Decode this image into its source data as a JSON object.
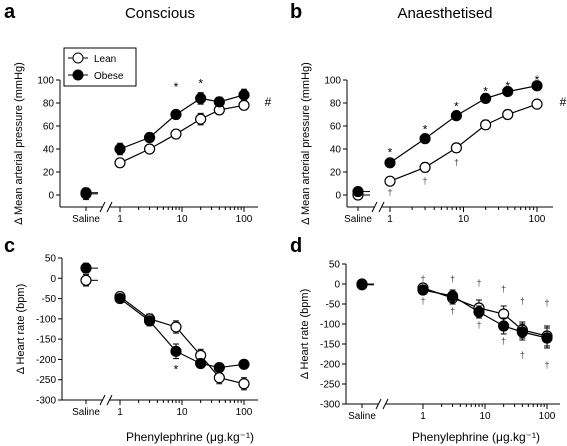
{
  "figure": {
    "xlabel": "Phenylephrine (μg.kg⁻¹)"
  },
  "chart_data": [
    {
      "panel_letter": "a",
      "title": "Conscious",
      "type": "line",
      "ylabel": "Δ Mean arterial pressure (mmHg)",
      "ylim": [
        -5,
        100
      ],
      "yticks": [
        0,
        20,
        40,
        60,
        80,
        100
      ],
      "xscale": "log",
      "xticks": [
        1,
        10,
        100
      ],
      "saline_label": "Saline",
      "legend": {
        "position": "top-left",
        "entries": [
          "Lean",
          "Obese"
        ]
      },
      "grid": false,
      "series": [
        {
          "name": "Lean",
          "marker": "open-circle",
          "saline": {
            "y": 2,
            "err": 4
          },
          "x": [
            1,
            3,
            8,
            20,
            40,
            100
          ],
          "y": [
            28,
            40,
            53,
            66,
            74,
            78
          ],
          "err": [
            3,
            3,
            4,
            5,
            4,
            4
          ]
        },
        {
          "name": "Obese",
          "marker": "filled-circle",
          "saline": {
            "y": 1,
            "err": 5
          },
          "x": [
            1,
            3,
            8,
            20,
            40,
            100
          ],
          "y": [
            40,
            50,
            70,
            84,
            81,
            87
          ],
          "err": [
            5,
            4,
            3,
            5,
            4,
            5
          ]
        }
      ],
      "annotations": [
        {
          "text": "*",
          "x": 8,
          "y": 94
        },
        {
          "text": "*",
          "x": 20,
          "y": 97
        },
        {
          "text": "#",
          "x": 150,
          "y": 81
        }
      ]
    },
    {
      "panel_letter": "b",
      "title": "Anaesthetised",
      "type": "line",
      "ylabel": "Δ Mean arterial pressure (mmHg)",
      "ylim": [
        -5,
        100
      ],
      "yticks": [
        0,
        20,
        40,
        60,
        80,
        100
      ],
      "xscale": "log",
      "xticks": [
        1,
        10,
        100
      ],
      "saline_label": "Saline",
      "grid": false,
      "series": [
        {
          "name": "Lean",
          "marker": "open-circle",
          "saline": {
            "y": 0,
            "err": 2
          },
          "x": [
            1,
            3,
            8,
            20,
            40,
            100
          ],
          "y": [
            12,
            24,
            41,
            61,
            70,
            79
          ],
          "err": [
            3,
            4,
            4,
            4,
            4,
            3
          ]
        },
        {
          "name": "Obese",
          "marker": "filled-circle",
          "saline": {
            "y": 3,
            "err": 2
          },
          "x": [
            1,
            3,
            8,
            20,
            40,
            100
          ],
          "y": [
            28,
            49,
            69,
            84,
            90,
            95
          ],
          "err": [
            3,
            2,
            3,
            2,
            2,
            2
          ]
        }
      ],
      "annotations": [
        {
          "text": "*",
          "x": 1,
          "y": 37
        },
        {
          "text": "*",
          "x": 3,
          "y": 57
        },
        {
          "text": "*",
          "x": 8,
          "y": 77
        },
        {
          "text": "*",
          "x": 20,
          "y": 90
        },
        {
          "text": "*",
          "x": 40,
          "y": 95
        },
        {
          "text": "*",
          "x": 100,
          "y": 100
        },
        {
          "text": "#",
          "x": 150,
          "y": 81
        },
        {
          "text": "†",
          "x": 1,
          "y": 3
        },
        {
          "text": "†",
          "x": 3,
          "y": 13
        },
        {
          "text": "†",
          "x": 8,
          "y": 29
        }
      ]
    },
    {
      "panel_letter": "c",
      "type": "line",
      "ylabel": "Δ Heart rate (bpm)",
      "ylim": [
        -300,
        50
      ],
      "yticks": [
        50,
        0,
        -50,
        -100,
        -150,
        -200,
        -250,
        -300
      ],
      "xscale": "log",
      "xticks": [
        1,
        10,
        100
      ],
      "saline_label": "Saline",
      "grid": false,
      "series": [
        {
          "name": "Lean",
          "marker": "open-circle",
          "saline": {
            "y": -5,
            "err": 14
          },
          "x": [
            1,
            3,
            8,
            20,
            40,
            100
          ],
          "y": [
            -45,
            -100,
            -120,
            -190,
            -245,
            -260
          ],
          "err": [
            10,
            12,
            15,
            15,
            15,
            15
          ]
        },
        {
          "name": "Obese",
          "marker": "filled-circle",
          "saline": {
            "y": 25,
            "err": 12
          },
          "x": [
            1,
            3,
            8,
            20,
            40,
            100
          ],
          "y": [
            -50,
            -105,
            -180,
            -210,
            -220,
            -212
          ],
          "err": [
            10,
            12,
            18,
            10,
            10,
            5
          ]
        }
      ],
      "annotations": [
        {
          "text": "*",
          "x": 8,
          "y": -225
        }
      ]
    },
    {
      "panel_letter": "d",
      "type": "line",
      "ylabel": "Δ Heart rate (bpm)",
      "ylim": [
        -300,
        50
      ],
      "yticks": [
        50,
        0,
        -50,
        -100,
        -150,
        -200,
        -250,
        -300
      ],
      "xscale": "log",
      "xticks": [
        1,
        10,
        100
      ],
      "saline_label": "Saline",
      "grid": false,
      "series": [
        {
          "name": "Lean",
          "marker": "open-circle",
          "saline": {
            "y": 0,
            "err": 5
          },
          "x": [
            1,
            3,
            8,
            20,
            40,
            100
          ],
          "y": [
            -10,
            -35,
            -60,
            -75,
            -115,
            -130
          ],
          "err": [
            10,
            15,
            20,
            20,
            20,
            25
          ]
        },
        {
          "name": "Obese",
          "marker": "filled-circle",
          "saline": {
            "y": -2,
            "err": 5
          },
          "x": [
            1,
            3,
            8,
            20,
            40,
            100
          ],
          "y": [
            -15,
            -30,
            -70,
            -105,
            -120,
            -135
          ],
          "err": [
            10,
            15,
            15,
            20,
            20,
            25
          ]
        }
      ],
      "annotations": [
        {
          "text": "†",
          "x": 1,
          "y": 15
        },
        {
          "text": "†",
          "x": 3,
          "y": 15
        },
        {
          "text": "†",
          "x": 8,
          "y": 5
        },
        {
          "text": "†",
          "x": 20,
          "y": -10
        },
        {
          "text": "†",
          "x": 40,
          "y": -40
        },
        {
          "text": "†",
          "x": 100,
          "y": -45
        },
        {
          "text": "†",
          "x": 1,
          "y": -40
        },
        {
          "text": "†",
          "x": 3,
          "y": -65
        },
        {
          "text": "†",
          "x": 8,
          "y": -100
        },
        {
          "text": "†",
          "x": 20,
          "y": -140
        },
        {
          "text": "†",
          "x": 40,
          "y": -175
        },
        {
          "text": "†",
          "x": 100,
          "y": -200
        }
      ]
    }
  ]
}
